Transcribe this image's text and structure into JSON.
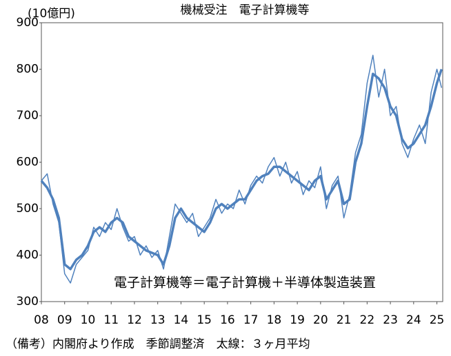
{
  "chart_data": {
    "type": "line",
    "title": "機械受注　電子計算機等",
    "y_label": "(10億円)",
    "annotation": "電子計算機等＝電子計算機＋半導体製造装置",
    "note": "（備考）内閣府より作成　季節調整済　太線：３ヶ月平均",
    "x": [
      2008,
      2008.25,
      2008.5,
      2008.75,
      2009,
      2009.25,
      2009.5,
      2009.75,
      2010,
      2010.25,
      2010.5,
      2010.75,
      2011,
      2011.25,
      2011.5,
      2011.75,
      2012,
      2012.25,
      2012.5,
      2012.75,
      2013,
      2013.25,
      2013.5,
      2013.75,
      2014,
      2014.25,
      2014.5,
      2014.75,
      2015,
      2015.25,
      2015.5,
      2015.75,
      2016,
      2016.25,
      2016.5,
      2016.75,
      2017,
      2017.25,
      2017.5,
      2017.75,
      2018,
      2018.25,
      2018.5,
      2018.75,
      2019,
      2019.25,
      2019.5,
      2019.75,
      2020,
      2020.25,
      2020.5,
      2020.75,
      2021,
      2021.25,
      2021.5,
      2021.75,
      2022,
      2022.25,
      2022.5,
      2022.75,
      2023,
      2023.25,
      2023.5,
      2023.75,
      2024,
      2024.25,
      2024.5,
      2024.75,
      2025,
      2025.2
    ],
    "series": [
      {
        "color": "#4f81bd",
        "width": 1.5,
        "values": [
          560,
          575,
          510,
          470,
          360,
          340,
          380,
          395,
          410,
          460,
          440,
          470,
          455,
          500,
          460,
          430,
          440,
          400,
          420,
          395,
          410,
          370,
          440,
          510,
          490,
          470,
          490,
          440,
          460,
          480,
          520,
          490,
          510,
          500,
          540,
          510,
          550,
          570,
          555,
          590,
          610,
          570,
          600,
          555,
          580,
          530,
          560,
          545,
          590,
          500,
          550,
          570,
          480,
          530,
          620,
          660,
          770,
          830,
          740,
          800,
          700,
          720,
          640,
          610,
          650,
          680,
          640,
          750,
          800,
          760
        ]
      },
      {
        "color": "#4f81bd",
        "width": 3.5,
        "values": [
          560,
          545,
          520,
          480,
          380,
          370,
          390,
          400,
          420,
          450,
          460,
          450,
          470,
          480,
          470,
          440,
          430,
          420,
          410,
          405,
          400,
          380,
          420,
          480,
          500,
          480,
          470,
          460,
          450,
          470,
          500,
          510,
          500,
          510,
          520,
          520,
          540,
          560,
          570,
          575,
          590,
          590,
          580,
          570,
          560,
          550,
          540,
          560,
          570,
          520,
          540,
          560,
          510,
          520,
          600,
          640,
          720,
          790,
          780,
          760,
          720,
          700,
          650,
          630,
          640,
          660,
          680,
          720,
          770,
          800
        ]
      }
    ],
    "xlim": [
      2008,
      2025.25
    ],
    "xticks": [
      {
        "value": 2008,
        "label": "08"
      },
      {
        "value": 2009,
        "label": "09"
      },
      {
        "value": 2010,
        "label": "10"
      },
      {
        "value": 2011,
        "label": "11"
      },
      {
        "value": 2012,
        "label": "12"
      },
      {
        "value": 2013,
        "label": "13"
      },
      {
        "value": 2014,
        "label": "14"
      },
      {
        "value": 2015,
        "label": "15"
      },
      {
        "value": 2016,
        "label": "16"
      },
      {
        "value": 2017,
        "label": "17"
      },
      {
        "value": 2018,
        "label": "18"
      },
      {
        "value": 2019,
        "label": "19"
      },
      {
        "value": 2020,
        "label": "20"
      },
      {
        "value": 2021,
        "label": "21"
      },
      {
        "value": 2022,
        "label": "22"
      },
      {
        "value": 2023,
        "label": "23"
      },
      {
        "value": 2024,
        "label": "24"
      },
      {
        "value": 2025,
        "label": "25"
      }
    ],
    "ylim": [
      300,
      900
    ],
    "yticks": [
      300,
      400,
      500,
      600,
      700,
      800,
      900
    ]
  }
}
